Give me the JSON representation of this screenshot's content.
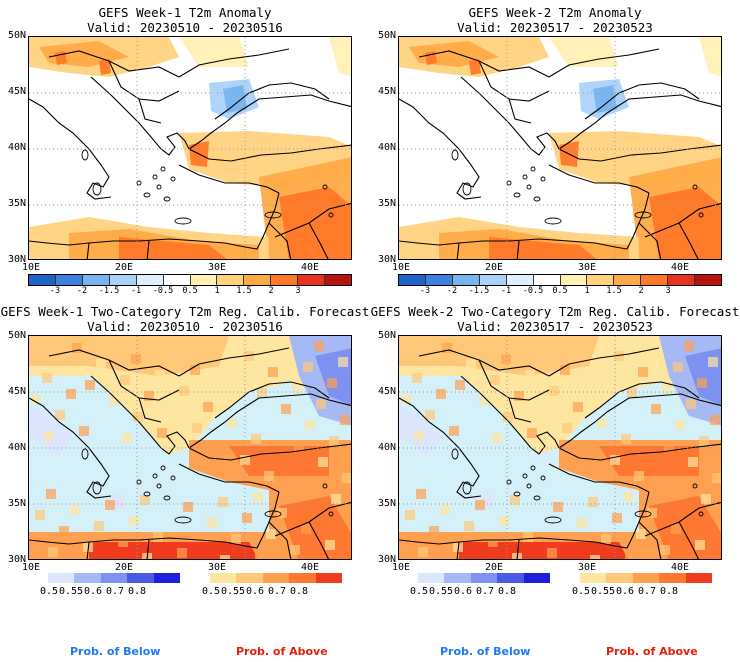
{
  "panels": [
    {
      "title": "GEFS Week-1 T2m Anomaly",
      "valid": "Valid: 20230510 - 20230516"
    },
    {
      "title": "GEFS Week-2 T2m Anomaly",
      "valid": "Valid: 20230517 - 20230523"
    },
    {
      "title": "GEFS Week-1 Two-Category T2m Reg. Calib. Forecast",
      "valid": "Valid: 20230510 - 20230516"
    },
    {
      "title": "GEFS Week-2 Two-Category T2m Reg. Calib. Forecast",
      "valid": "Valid: 20230517 - 20230523"
    }
  ],
  "lat_labels": [
    "50N",
    "45N",
    "40N",
    "35N",
    "30N"
  ],
  "lon_labels": [
    "10E",
    "20E",
    "30E",
    "40E"
  ],
  "anomaly_scale": {
    "labels": [
      "-3",
      "-2",
      "-1.5",
      "-1",
      "-0.5",
      "0.5",
      "1",
      "1.5",
      "2",
      "3"
    ],
    "colors": [
      "#1e64c8",
      "#3c82dc",
      "#78b4f0",
      "#aad2fa",
      "#dcf0ff",
      "#ffffff",
      "#fff0b4",
      "#ffd27d",
      "#ffaa46",
      "#ff7828",
      "#e6321e",
      "#b4140f"
    ]
  },
  "below_scale": {
    "labels": [
      "0.5",
      "0.55",
      "0.6",
      "0.7",
      "0.8"
    ],
    "colors": [
      "#dce6ff",
      "#a5b9f5",
      "#7d91f0",
      "#4b5ae6",
      "#1e1edc"
    ]
  },
  "above_scale": {
    "labels": [
      "0.5",
      "0.55",
      "0.6",
      "0.7",
      "0.8"
    ],
    "colors": [
      "#ffe6a0",
      "#ffc878",
      "#ffa050",
      "#ff7832",
      "#f03c1e"
    ]
  },
  "legend": {
    "below": "Prob. of Below",
    "above": "Prob. of Above"
  },
  "colors": {
    "below_text": "#1e78f0",
    "above_text": "#e61e0a",
    "sea": "#d4f1fa"
  }
}
